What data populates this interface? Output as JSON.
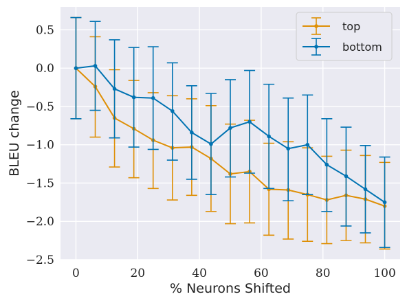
{
  "chart_data": {
    "type": "line",
    "xlabel": "% Neurons Shifted",
    "ylabel": "BLEU change",
    "xlim": [
      -5,
      105
    ],
    "ylim": [
      -2.5,
      0.8
    ],
    "x_ticks": [
      0,
      20,
      40,
      60,
      80,
      100
    ],
    "y_ticks": [
      0.5,
      0.0,
      -0.5,
      -1.0,
      -1.5,
      -2.0,
      -2.5
    ],
    "x_tick_labels": [
      "0",
      "20",
      "40",
      "60",
      "80",
      "100"
    ],
    "y_tick_labels": [
      "0.5",
      "0.0",
      "−0.5",
      "−1.0",
      "−1.5",
      "−2.0",
      "−2.5"
    ],
    "grid": true,
    "legend_position": "top-right",
    "x": [
      0,
      6.25,
      12.5,
      18.75,
      25,
      31.25,
      37.5,
      43.75,
      50,
      56.25,
      62.5,
      68.75,
      75,
      81.25,
      87.5,
      93.75,
      100
    ],
    "series": [
      {
        "name": "top",
        "color": "#de8f05",
        "values": [
          0.0,
          -0.24,
          -0.65,
          -0.79,
          -0.94,
          -1.04,
          -1.03,
          -1.18,
          -1.38,
          -1.35,
          -1.58,
          -1.59,
          -1.65,
          -1.72,
          -1.66,
          -1.71,
          -1.8
        ],
        "err_low": [
          -0.66,
          -0.9,
          -1.29,
          -1.43,
          -1.57,
          -1.72,
          -1.66,
          -1.87,
          -2.03,
          -2.02,
          -2.18,
          -2.23,
          -2.26,
          -2.29,
          -2.25,
          -2.28,
          -2.36
        ],
        "err_high": [
          0.66,
          0.41,
          -0.02,
          -0.16,
          -0.32,
          -0.36,
          -0.4,
          -0.49,
          -0.73,
          -0.68,
          -0.98,
          -0.96,
          -1.04,
          -1.15,
          -1.07,
          -1.14,
          -1.23
        ]
      },
      {
        "name": "bottom",
        "color": "#0173b2",
        "values": [
          0.0,
          0.03,
          -0.27,
          -0.38,
          -0.39,
          -0.56,
          -0.84,
          -0.99,
          -0.78,
          -0.7,
          -0.89,
          -1.05,
          -1.0,
          -1.26,
          -1.41,
          -1.58,
          -1.75
        ],
        "err_low": [
          -0.66,
          -0.55,
          -0.91,
          -1.03,
          -1.06,
          -1.2,
          -1.45,
          -1.65,
          -1.42,
          -1.37,
          -1.57,
          -1.73,
          -1.65,
          -1.87,
          -2.06,
          -2.15,
          -2.34
        ],
        "err_high": [
          0.66,
          0.61,
          0.37,
          0.27,
          0.28,
          0.07,
          -0.23,
          -0.33,
          -0.15,
          -0.03,
          -0.21,
          -0.39,
          -0.35,
          -0.66,
          -0.77,
          -1.01,
          -1.16
        ]
      }
    ]
  },
  "style": {
    "background": "#eaeaf2",
    "grid_color": "#ffffff"
  }
}
